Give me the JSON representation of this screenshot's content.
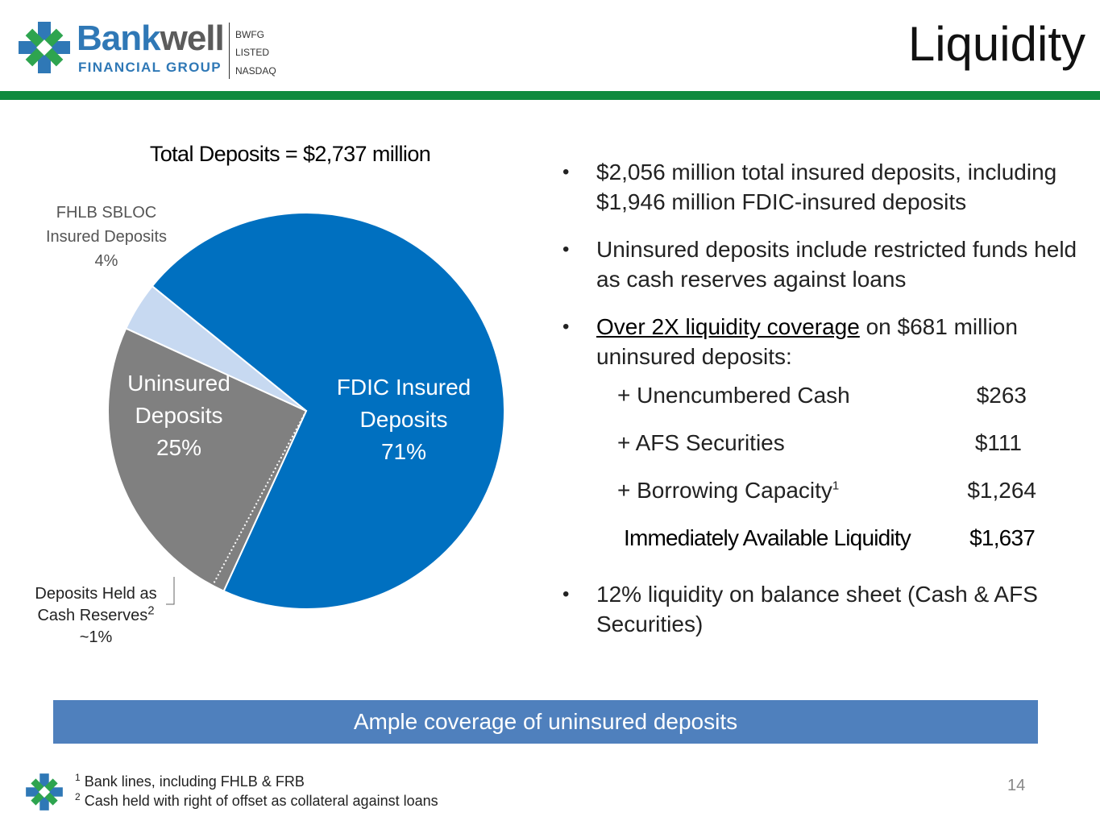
{
  "header": {
    "brand_name_part1": "Bank",
    "brand_name_part2": "well",
    "brand_subtitle": "FINANCIAL GROUP",
    "listing_ticker": "BWFG",
    "listing_status": "LISTED",
    "listing_exchange": "NASDAQ",
    "title": "Liquidity"
  },
  "colors": {
    "brand_blue": "#2f78b6",
    "green_rule": "#0e8a3e",
    "fdic_slice": "#0070c0",
    "uninsured_slice": "#808080",
    "fhlb_slice": "#c7d9f1",
    "banner_bg": "#4f80bd"
  },
  "chart_data": {
    "type": "pie",
    "title": "Total Deposits = $2,737 million",
    "total_million": 2737,
    "slices": [
      {
        "name": "FDIC Insured Deposits",
        "label_line1": "FDIC Insured",
        "label_line2": "Deposits",
        "percent_label": "71%",
        "value": 71,
        "color": "#0070c0"
      },
      {
        "name": "Uninsured Deposits",
        "label_line1": "Uninsured",
        "label_line2": "Deposits",
        "percent_label": "25%",
        "value": 25,
        "color": "#808080"
      },
      {
        "name": "FHLB SBLOC Insured Deposits",
        "label_line1": "FHLB SBLOC",
        "label_line2": "Insured Deposits",
        "percent_label": "4%",
        "value": 4,
        "color": "#c7d9f1"
      }
    ],
    "sub_slice": {
      "name": "Deposits Held as Cash Reserves",
      "label_line1": "Deposits Held as",
      "label_line2": "Cash Reserves",
      "footnote_ref": "2",
      "percent_label": "~1%",
      "value": 1
    }
  },
  "bullets": {
    "b1": "$2,056 million total insured deposits, including $1,946 million FDIC-insured deposits",
    "b2": "Uninsured deposits include restricted funds held as cash reserves against loans",
    "b3_underlined": "Over 2X liquidity coverage",
    "b3_rest": " on $681 million uninsured deposits:",
    "b4": "12% liquidity on balance sheet (Cash & AFS Securities)"
  },
  "liquidity_table": {
    "rows": [
      {
        "label": "+ Unencumbered Cash",
        "value": "$263"
      },
      {
        "label": "+ AFS Securities",
        "value": "$111"
      },
      {
        "label": "+ Borrowing Capacity",
        "sup": "1",
        "value": "$1,264"
      }
    ],
    "total_label": "Immediately Available Liquidity",
    "total_value": "$1,637"
  },
  "banner": {
    "text": "Ample coverage of uninsured deposits"
  },
  "footer": {
    "note1_num": "1",
    "note1_text": "Bank lines, including FHLB & FRB",
    "note2_num": "2",
    "note2_text": "Cash held with right of offset as collateral against loans",
    "page_number": "14"
  }
}
